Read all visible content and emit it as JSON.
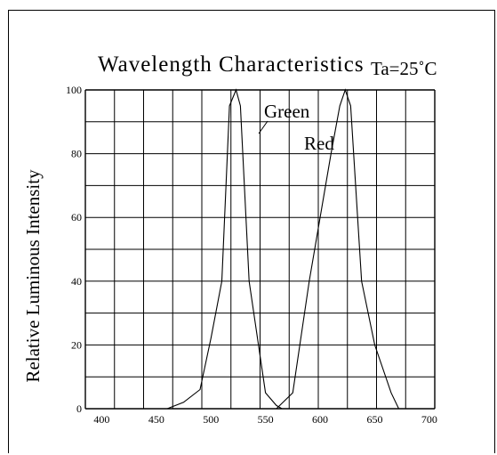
{
  "chart_data": {
    "type": "line",
    "title": "Wavelength Characteristics",
    "condition": "Ta=25˚C",
    "xlabel": "",
    "ylabel": "Relative Luminous Intensity",
    "xlim": [
      385,
      705
    ],
    "ylim": [
      0,
      100
    ],
    "x_ticks": [
      "400",
      "450",
      "500",
      "550",
      "600",
      "650",
      "700"
    ],
    "y_ticks": [
      "0",
      "20",
      "40",
      "60",
      "80",
      "100"
    ],
    "grid": true,
    "series": [
      {
        "name": "Green",
        "color": "#000000",
        "points": [
          [
            460,
            0
          ],
          [
            475,
            2
          ],
          [
            490,
            6
          ],
          [
            500,
            22
          ],
          [
            510,
            40
          ],
          [
            517,
            95
          ],
          [
            523,
            100
          ],
          [
            527,
            95
          ],
          [
            535,
            40
          ],
          [
            550,
            5
          ],
          [
            560,
            1
          ],
          [
            565,
            0
          ]
        ]
      },
      {
        "name": "Red",
        "color": "#000000",
        "points": [
          [
            560,
            0
          ],
          [
            575,
            5
          ],
          [
            590,
            40
          ],
          [
            610,
            80
          ],
          [
            618,
            95
          ],
          [
            623,
            100
          ],
          [
            628,
            95
          ],
          [
            638,
            40
          ],
          [
            650,
            20
          ],
          [
            665,
            5
          ],
          [
            672,
            0
          ]
        ]
      }
    ]
  }
}
